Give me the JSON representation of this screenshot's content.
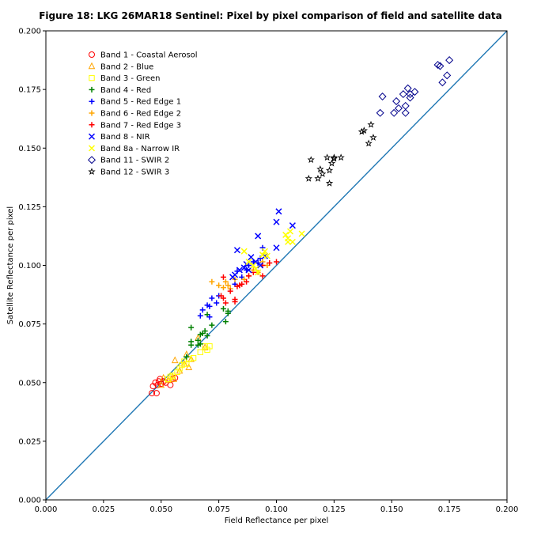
{
  "chart_data": {
    "type": "scatter",
    "title": "Figure 18: LKG 26MAR18  Sentinel: Pixel by pixel comparison of field and satellite data",
    "xlabel": "Field Reflectance per pixel",
    "ylabel": "Satellite Reflectance per pixel",
    "xlim": [
      0.0,
      0.2
    ],
    "ylim": [
      0.0,
      0.2
    ],
    "x_ticks": [
      "0.000",
      "0.025",
      "0.050",
      "0.075",
      "0.100",
      "0.125",
      "0.150",
      "0.175",
      "0.200"
    ],
    "y_ticks": [
      "0.000",
      "0.025",
      "0.050",
      "0.075",
      "0.100",
      "0.125",
      "0.150",
      "0.175",
      "0.200"
    ],
    "grid": false,
    "legend_position": "upper-left",
    "reference_line": {
      "x": [
        0.0,
        0.2
      ],
      "y": [
        0.0,
        0.2
      ],
      "color": "#1f77b4"
    },
    "series": [
      {
        "name": "Band 1 - Coastal Aerosol",
        "marker": "circle-open",
        "color": "#ff0000",
        "points": [
          [
            0.046,
            0.0455
          ],
          [
            0.0465,
            0.0485
          ],
          [
            0.048,
            0.0455
          ],
          [
            0.049,
            0.0505
          ],
          [
            0.0485,
            0.049
          ],
          [
            0.0495,
            0.0515
          ],
          [
            0.05,
            0.0495
          ],
          [
            0.051,
            0.0505
          ],
          [
            0.052,
            0.05
          ],
          [
            0.054,
            0.049
          ],
          [
            0.055,
            0.0515
          ],
          [
            0.056,
            0.052
          ],
          [
            0.0475,
            0.05
          ]
        ]
      },
      {
        "name": "Band 2 - Blue",
        "marker": "triangle-open",
        "color": "#ffa500",
        "points": [
          [
            0.05,
            0.049
          ],
          [
            0.051,
            0.052
          ],
          [
            0.053,
            0.051
          ],
          [
            0.055,
            0.0525
          ],
          [
            0.056,
            0.0595
          ],
          [
            0.058,
            0.055
          ],
          [
            0.06,
            0.058
          ],
          [
            0.061,
            0.062
          ],
          [
            0.062,
            0.0565
          ],
          [
            0.063,
            0.06
          ],
          [
            0.069,
            0.065
          ],
          [
            0.066,
            0.069
          ],
          [
            0.0555,
            0.0515
          ]
        ]
      },
      {
        "name": "Band 3 - Green",
        "marker": "square-open",
        "color": "#ffff00",
        "points": [
          [
            0.053,
            0.0515
          ],
          [
            0.054,
            0.0525
          ],
          [
            0.055,
            0.053
          ],
          [
            0.057,
            0.0545
          ],
          [
            0.058,
            0.056
          ],
          [
            0.059,
            0.0575
          ],
          [
            0.06,
            0.059
          ],
          [
            0.061,
            0.058
          ],
          [
            0.062,
            0.06
          ],
          [
            0.064,
            0.0605
          ],
          [
            0.067,
            0.063
          ],
          [
            0.069,
            0.0655
          ],
          [
            0.071,
            0.0655
          ],
          [
            0.07,
            0.064
          ]
        ]
      },
      {
        "name": "Band 4 - Red",
        "marker": "plus",
        "color": "#008000",
        "points": [
          [
            0.061,
            0.061
          ],
          [
            0.063,
            0.066
          ],
          [
            0.063,
            0.0675
          ],
          [
            0.063,
            0.0735
          ],
          [
            0.066,
            0.068
          ],
          [
            0.067,
            0.0705
          ],
          [
            0.068,
            0.071
          ],
          [
            0.069,
            0.072
          ],
          [
            0.07,
            0.07
          ],
          [
            0.07,
            0.079
          ],
          [
            0.072,
            0.0745
          ],
          [
            0.077,
            0.0815
          ],
          [
            0.078,
            0.076
          ],
          [
            0.079,
            0.0795
          ],
          [
            0.079,
            0.0805
          ],
          [
            0.066,
            0.066
          ],
          [
            0.067,
            0.0665
          ]
        ]
      },
      {
        "name": "Band 5 - Red Edge 1",
        "marker": "plus",
        "color": "#0000ff",
        "points": [
          [
            0.067,
            0.0785
          ],
          [
            0.068,
            0.081
          ],
          [
            0.07,
            0.083
          ],
          [
            0.071,
            0.078
          ],
          [
            0.072,
            0.086
          ],
          [
            0.074,
            0.084
          ],
          [
            0.075,
            0.087
          ],
          [
            0.082,
            0.092
          ],
          [
            0.083,
            0.0975
          ],
          [
            0.085,
            0.095
          ],
          [
            0.087,
            0.098
          ],
          [
            0.088,
            0.1
          ],
          [
            0.09,
            0.1015
          ],
          [
            0.092,
            0.101
          ],
          [
            0.093,
            0.103
          ],
          [
            0.094,
            0.1075
          ],
          [
            0.071,
            0.0825
          ]
        ]
      },
      {
        "name": "Band 6 - Red Edge 2",
        "marker": "plus",
        "color": "#ffa500",
        "points": [
          [
            0.072,
            0.093
          ],
          [
            0.075,
            0.0915
          ],
          [
            0.077,
            0.0905
          ],
          [
            0.078,
            0.093
          ],
          [
            0.079,
            0.0915
          ],
          [
            0.08,
            0.09
          ],
          [
            0.082,
            0.094
          ],
          [
            0.084,
            0.0915
          ],
          [
            0.086,
            0.094
          ],
          [
            0.088,
            0.0955
          ],
          [
            0.09,
            0.098
          ],
          [
            0.092,
            0.097
          ],
          [
            0.094,
            0.1015
          ],
          [
            0.096,
            0.1
          ]
        ]
      },
      {
        "name": "Band 7 - Red Edge 3",
        "marker": "plus",
        "color": "#ff0000",
        "points": [
          [
            0.076,
            0.087
          ],
          [
            0.077,
            0.086
          ],
          [
            0.077,
            0.095
          ],
          [
            0.078,
            0.084
          ],
          [
            0.08,
            0.089
          ],
          [
            0.082,
            0.0855
          ],
          [
            0.082,
            0.0845
          ],
          [
            0.083,
            0.091
          ],
          [
            0.084,
            0.0915
          ],
          [
            0.085,
            0.092
          ],
          [
            0.087,
            0.093
          ],
          [
            0.088,
            0.0955
          ],
          [
            0.09,
            0.097
          ],
          [
            0.094,
            0.0955
          ],
          [
            0.094,
            0.1
          ],
          [
            0.097,
            0.101
          ],
          [
            0.1,
            0.1015
          ]
        ]
      },
      {
        "name": "Band 8 - NIR",
        "marker": "x",
        "color": "#0000ff",
        "points": [
          [
            0.082,
            0.096
          ],
          [
            0.083,
            0.1065
          ],
          [
            0.084,
            0.098
          ],
          [
            0.086,
            0.099
          ],
          [
            0.087,
            0.1005
          ],
          [
            0.088,
            0.098
          ],
          [
            0.089,
            0.1035
          ],
          [
            0.091,
            0.1015
          ],
          [
            0.092,
            0.1125
          ],
          [
            0.093,
            0.1
          ],
          [
            0.095,
            0.104
          ],
          [
            0.1,
            0.1075
          ],
          [
            0.1,
            0.1185
          ],
          [
            0.101,
            0.123
          ],
          [
            0.107,
            0.117
          ],
          [
            0.081,
            0.095
          ]
        ]
      },
      {
        "name": "Band 8a - Narrow IR",
        "marker": "x",
        "color": "#ffff00",
        "points": [
          [
            0.086,
            0.106
          ],
          [
            0.088,
            0.1015
          ],
          [
            0.09,
            0.1
          ],
          [
            0.091,
            0.0985
          ],
          [
            0.092,
            0.097
          ],
          [
            0.094,
            0.1045
          ],
          [
            0.095,
            0.106
          ],
          [
            0.096,
            0.104
          ],
          [
            0.104,
            0.113
          ],
          [
            0.105,
            0.1115
          ],
          [
            0.105,
            0.11
          ],
          [
            0.106,
            0.1145
          ],
          [
            0.107,
            0.11
          ],
          [
            0.111,
            0.1135
          ]
        ]
      },
      {
        "name": "Band 11 - SWIR 2",
        "marker": "diamond-open",
        "color": "#00008b",
        "points": [
          [
            0.145,
            0.165
          ],
          [
            0.146,
            0.172
          ],
          [
            0.151,
            0.165
          ],
          [
            0.152,
            0.17
          ],
          [
            0.153,
            0.167
          ],
          [
            0.155,
            0.173
          ],
          [
            0.156,
            0.168
          ],
          [
            0.156,
            0.165
          ],
          [
            0.157,
            0.1755
          ],
          [
            0.158,
            0.173
          ],
          [
            0.158,
            0.1715
          ],
          [
            0.16,
            0.174
          ],
          [
            0.17,
            0.1855
          ],
          [
            0.171,
            0.185
          ],
          [
            0.172,
            0.178
          ],
          [
            0.174,
            0.181
          ],
          [
            0.175,
            0.1875
          ]
        ]
      },
      {
        "name": "Band 12 - SWIR 3",
        "marker": "star",
        "color": "#000000",
        "points": [
          [
            0.114,
            0.137
          ],
          [
            0.115,
            0.145
          ],
          [
            0.118,
            0.137
          ],
          [
            0.119,
            0.141
          ],
          [
            0.12,
            0.139
          ],
          [
            0.122,
            0.146
          ],
          [
            0.123,
            0.1405
          ],
          [
            0.123,
            0.135
          ],
          [
            0.124,
            0.1435
          ],
          [
            0.125,
            0.146
          ],
          [
            0.125,
            0.1455
          ],
          [
            0.128,
            0.146
          ],
          [
            0.137,
            0.157
          ],
          [
            0.138,
            0.1575
          ],
          [
            0.14,
            0.152
          ],
          [
            0.141,
            0.16
          ],
          [
            0.142,
            0.1545
          ]
        ]
      }
    ]
  }
}
